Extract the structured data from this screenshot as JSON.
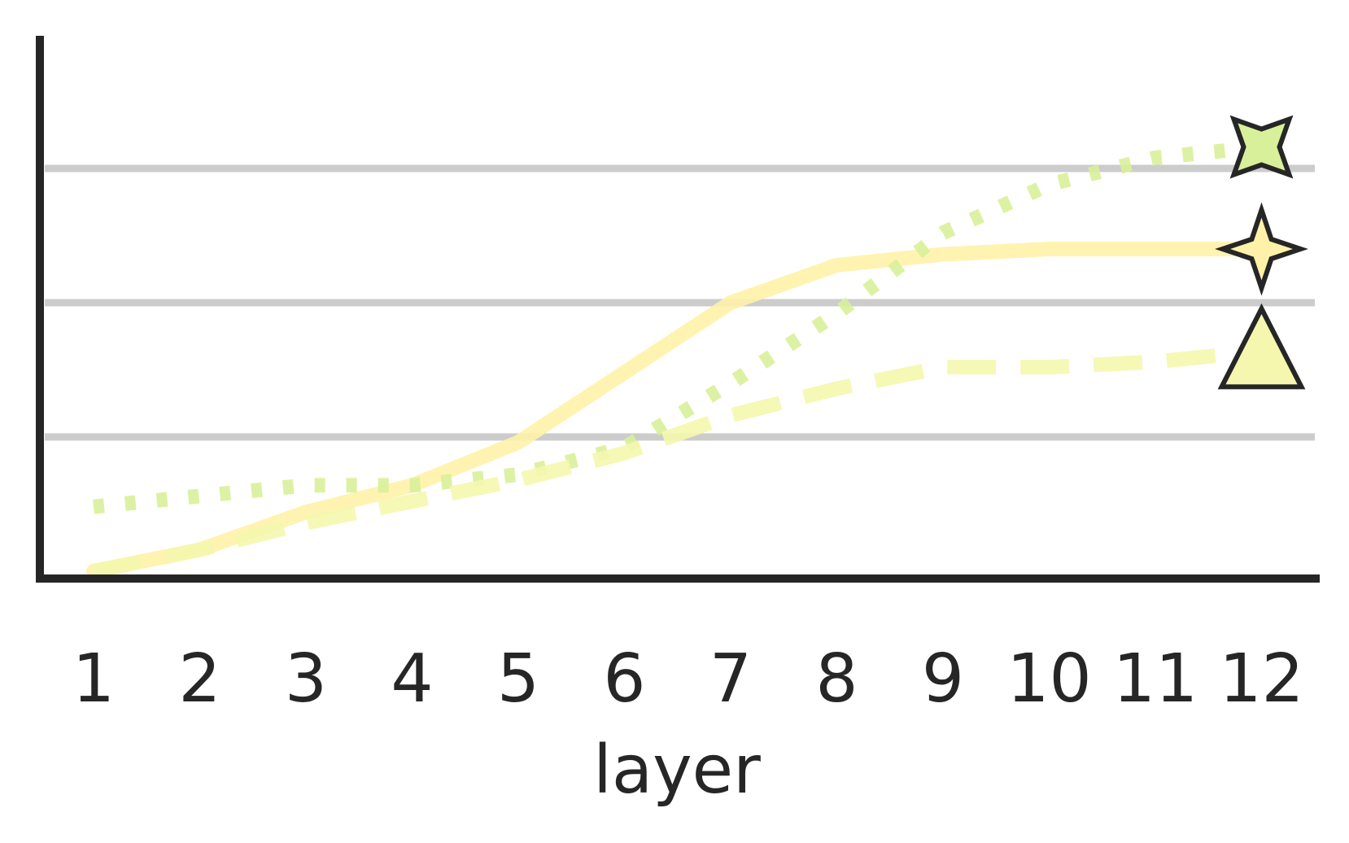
{
  "chart_data": {
    "type": "line",
    "title": "",
    "xlabel": "layer",
    "ylabel": "",
    "x": [
      1,
      2,
      3,
      4,
      5,
      6,
      7,
      8,
      9,
      10,
      11,
      12
    ],
    "ylim": [
      0,
      1
    ],
    "yticks_gridlines": [
      0.25,
      0.5,
      0.75
    ],
    "grid": "horizontal",
    "y_tick_labels_shown": false,
    "legend": "none",
    "series": [
      {
        "line_style": "solid",
        "color": "#fff2a8",
        "marker": "four-point-star",
        "values": [
          0.0,
          0.04,
          0.11,
          0.16,
          0.24,
          0.37,
          0.5,
          0.57,
          0.59,
          0.6,
          0.6,
          0.6
        ]
      },
      {
        "line_style": "dotted",
        "color": "#d9f09a",
        "marker": "concave-square",
        "values": [
          0.12,
          0.14,
          0.16,
          0.16,
          0.18,
          0.23,
          0.35,
          0.48,
          0.63,
          0.72,
          0.77,
          0.79
        ]
      },
      {
        "line_style": "dashed",
        "color": "#f5f7ae",
        "marker": "triangle",
        "values": [
          0.0,
          0.04,
          0.09,
          0.13,
          0.17,
          0.22,
          0.29,
          0.34,
          0.38,
          0.38,
          0.39,
          0.41
        ]
      }
    ]
  },
  "colors": {
    "axis": "#262626",
    "grid": "#cccccc",
    "marker_edge": "#262626"
  }
}
